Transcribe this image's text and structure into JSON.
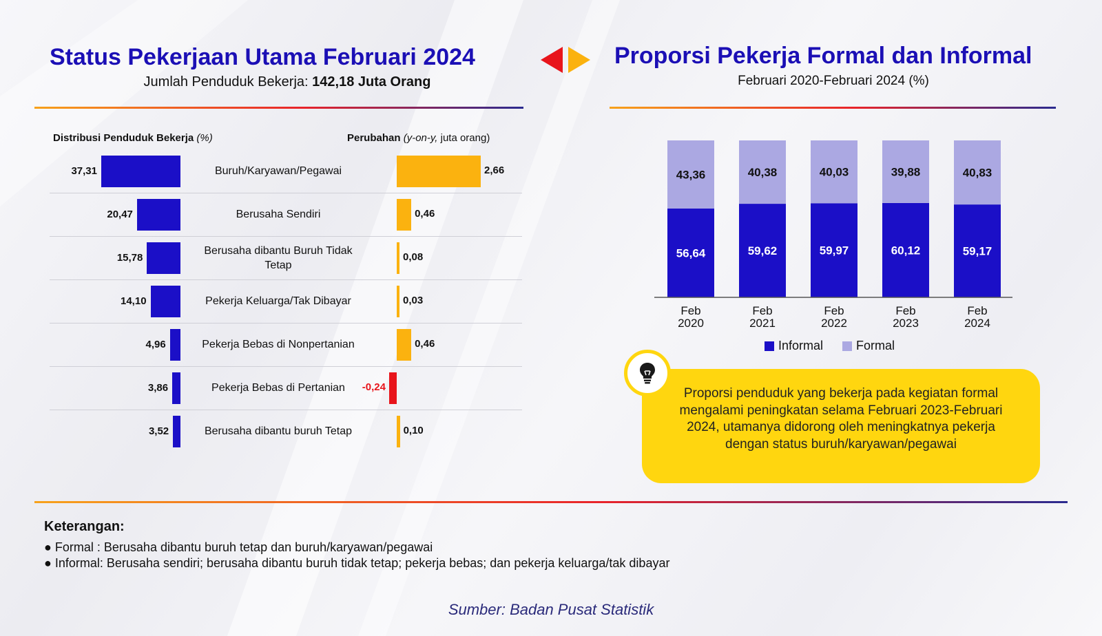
{
  "left_panel": {
    "title": "Status Pekerjaan Utama Februari 2024",
    "subtitle_prefix": "Jumlah Penduduk Bekerja:",
    "subtitle_value": "142,18 Juta Orang",
    "dist_header_bold": "Distribusi Penduduk Bekerja",
    "dist_header_unit": "(%)",
    "change_header_bold": "Perubahan",
    "change_header_italic": "(y-on-y,",
    "change_header_unit": "juta orang)"
  },
  "right_panel": {
    "title": "Proporsi Pekerja Formal dan Informal",
    "subtitle": "Februari 2020-Februari 2024 (%)"
  },
  "chart_data": [
    {
      "type": "bar",
      "orientation": "horizontal",
      "categories": [
        "Buruh/Karyawan/Pegawai",
        "Berusaha Sendiri",
        "Berusaha dibantu Buruh Tidak Tetap",
        "Pekerja Keluarga/Tak Dibayar",
        "Pekerja Bebas di Nonpertanian",
        "Pekerja Bebas di Pertanian",
        "Berusaha dibantu buruh Tetap"
      ],
      "series": [
        {
          "values": [
            37.31,
            20.47,
            15.78,
            14.1,
            4.96,
            3.86,
            3.52
          ],
          "labels": [
            "37,31",
            "20,47",
            "15,78",
            "14,10",
            "4,96",
            "3,86",
            "3,52"
          ]
        },
        {
          "values": [
            2.66,
            0.46,
            0.08,
            0.03,
            0.46,
            -0.24,
            0.1
          ],
          "labels": [
            "2,66",
            "0,46",
            "0,08",
            "0,03",
            "0,46",
            "-0,24",
            "0,10"
          ]
        }
      ],
      "colors": {
        "distribution": "#1b0fc7",
        "change_positive": "#fbb20f",
        "change_negative": "#e8141b"
      }
    },
    {
      "type": "bar",
      "stacked": true,
      "categories": [
        "Feb 2020",
        "Feb 2021",
        "Feb 2022",
        "Feb 2023",
        "Feb 2024"
      ],
      "series": [
        {
          "name": "Informal",
          "values": [
            56.64,
            59.62,
            59.97,
            60.12,
            59.17
          ],
          "labels": [
            "56,64",
            "59,62",
            "59,97",
            "60,12",
            "59,17"
          ],
          "color": "#1b0fc7"
        },
        {
          "name": "Formal",
          "values": [
            43.36,
            40.38,
            40.03,
            39.88,
            40.83
          ],
          "labels": [
            "43,36",
            "40,38",
            "40,03",
            "39,88",
            "40,83"
          ],
          "color": "#aba8e2"
        }
      ],
      "ylim": [
        0,
        100
      ],
      "legend": "bottom"
    }
  ],
  "note": {
    "icon": "lightbulb-icon",
    "text": "Proporsi penduduk yang bekerja pada kegiatan formal mengalami peningkatan selama Februari 2023-Februari 2024, utamanya didorong oleh meningkatnya pekerja dengan status buruh/karyawan/pegawai"
  },
  "keterangan": {
    "title": "Keterangan:",
    "items": [
      "Formal : Berusaha dibantu buruh tetap dan buruh/karyawan/pegawai",
      "Informal: Berusaha sendiri; berusaha dibantu buruh tidak tetap; pekerja bebas; dan pekerja keluarga/tak dibayar"
    ]
  },
  "source": "Sumber: Badan Pusat Statistik"
}
